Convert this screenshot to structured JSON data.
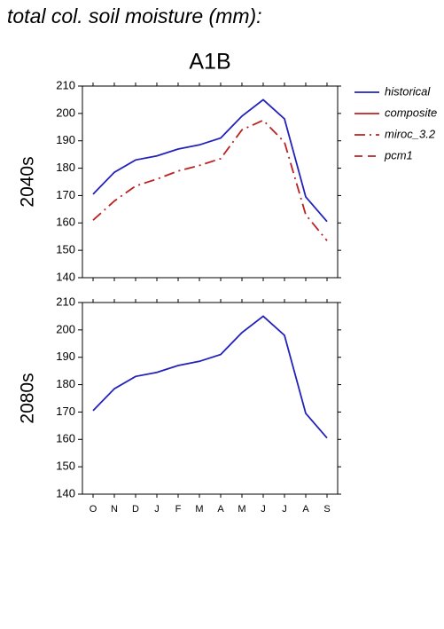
{
  "title": "total col. soil moisture (mm):",
  "subtitle": "A1B",
  "chart_data": [
    {
      "type": "line",
      "ylabel": "2040s",
      "ylim": [
        140,
        210
      ],
      "yticks": [
        140,
        150,
        160,
        170,
        180,
        190,
        200,
        210
      ],
      "series": [
        {
          "name": "historical",
          "color": "#2222bb",
          "dash": "solid",
          "values": [
            170.5,
            178.5,
            183,
            184.5,
            187,
            188.5,
            191,
            199,
            205,
            198,
            169.5,
            160.5
          ]
        },
        {
          "name": "composite",
          "color": "#bb2222",
          "dash": "solid",
          "values": [
            null,
            null,
            null,
            null,
            null,
            null,
            null,
            null,
            null,
            null,
            null,
            null
          ]
        },
        {
          "name": "miroc_3.2",
          "color": "#bb2222",
          "dash": "dashdot",
          "values": [
            161,
            168,
            173.5,
            176,
            179,
            181,
            183.5,
            194,
            197.5,
            189.5,
            163,
            153.5
          ]
        },
        {
          "name": "pcm1",
          "color": "#bb2222",
          "dash": "dashed",
          "values": [
            null,
            null,
            null,
            null,
            null,
            null,
            null,
            null,
            null,
            null,
            null,
            null
          ]
        }
      ]
    },
    {
      "type": "line",
      "ylabel": "2080s",
      "categories": [
        "O",
        "N",
        "D",
        "J",
        "F",
        "M",
        "A",
        "M",
        "J",
        "J",
        "A",
        "S"
      ],
      "ylim": [
        140,
        210
      ],
      "yticks": [
        140,
        150,
        160,
        170,
        180,
        190,
        200,
        210
      ],
      "series": [
        {
          "color": "#2222bb",
          "dash": "solid",
          "values": [
            170.5,
            178.5,
            183,
            184.5,
            187,
            188.5,
            191,
            199,
            205,
            198,
            169.5,
            160.5
          ]
        }
      ]
    }
  ]
}
